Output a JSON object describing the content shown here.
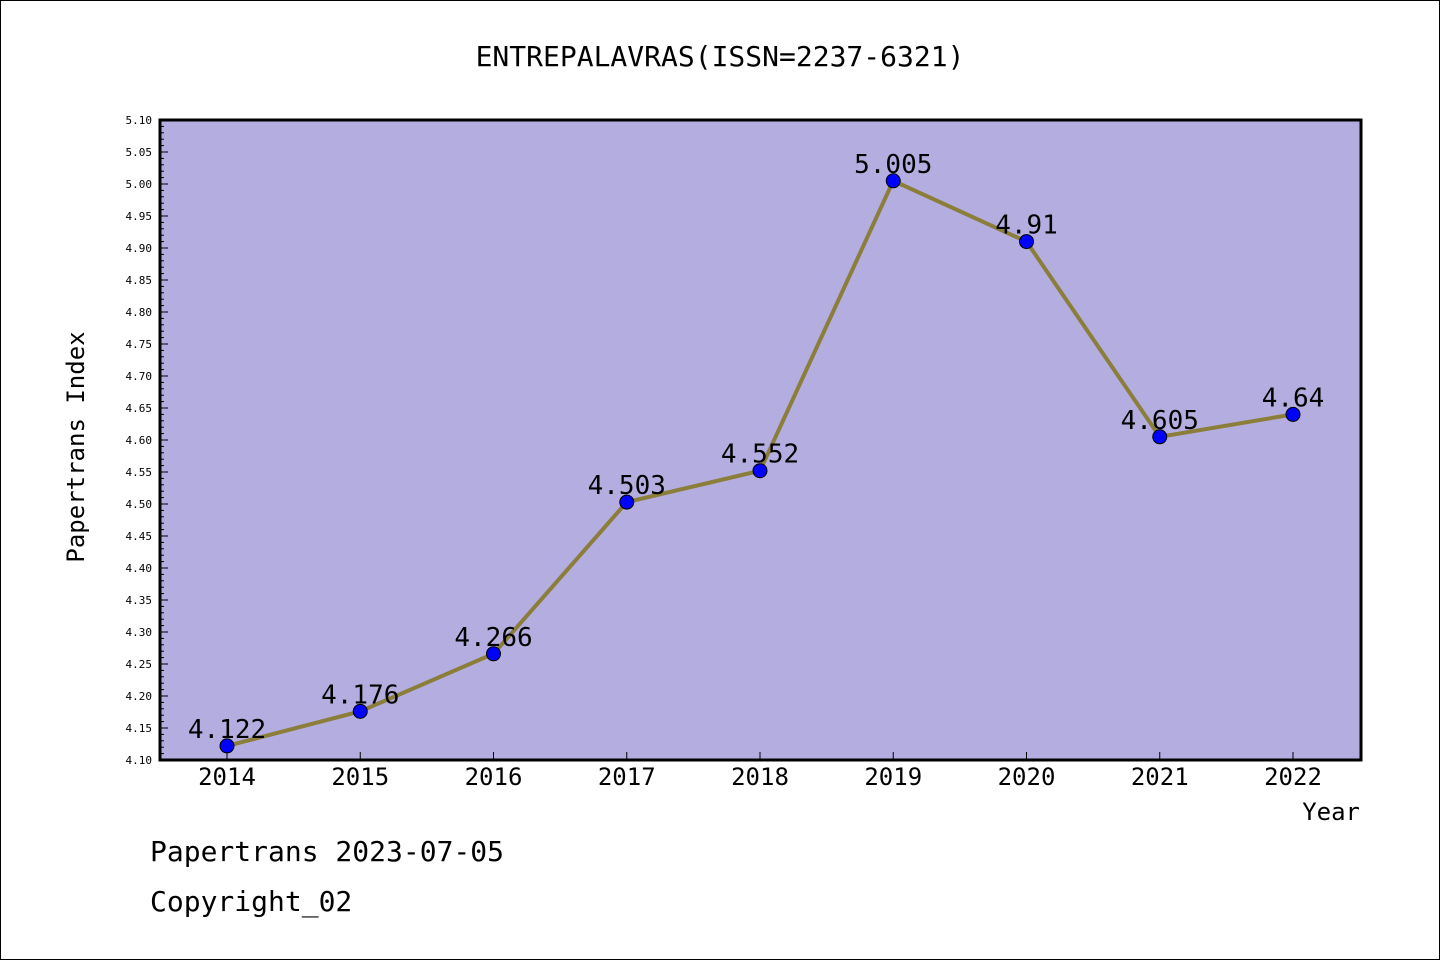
{
  "chart_data": {
    "type": "line",
    "title": "ENTREPALAVRAS(ISSN=2237-6321)",
    "xlabel": "Year",
    "ylabel": "Papertrans Index",
    "categories": [
      "2014",
      "2015",
      "2016",
      "2017",
      "2018",
      "2019",
      "2020",
      "2021",
      "2022"
    ],
    "series": [
      {
        "values": [
          4.122,
          4.176,
          4.266,
          4.503,
          4.552,
          5.005,
          4.91,
          4.605,
          4.64
        ],
        "labels": [
          "4.122",
          "4.176",
          "4.266",
          "4.503",
          "4.552",
          "5.005",
          "4.91",
          "4.605",
          "4.64"
        ]
      }
    ],
    "ylim": [
      4.1,
      5.1
    ],
    "y_ticks": [
      "4.10",
      "4.15",
      "4.20",
      "4.25",
      "4.30",
      "4.35",
      "4.40",
      "4.45",
      "4.50",
      "4.55",
      "4.60",
      "4.65",
      "4.70",
      "4.75",
      "4.80",
      "4.85",
      "4.90",
      "4.95",
      "5.00",
      "5.05",
      "5.10"
    ],
    "grid": false,
    "legend": "none",
    "colors": {
      "plot_background": "#b4aee0",
      "line": "#8b7d3a",
      "marker": "#0000ff"
    }
  },
  "footer": {
    "line1": "Papertrans 2023-07-05",
    "line2": "Copyright_02"
  }
}
